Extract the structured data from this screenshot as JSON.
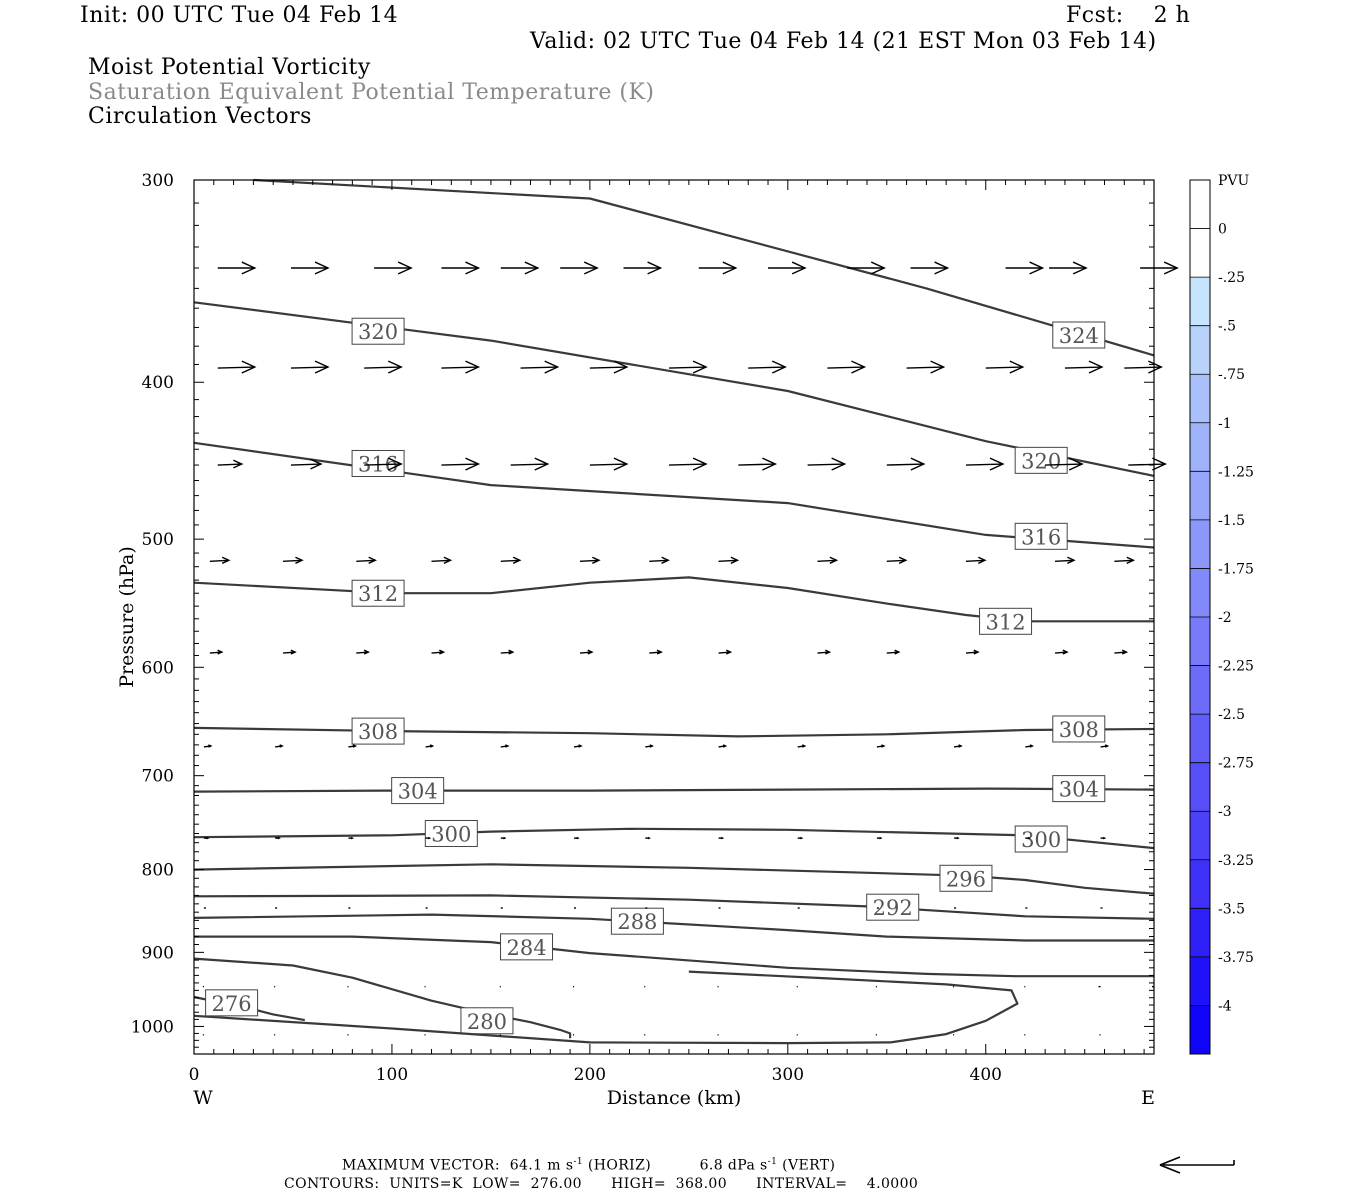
{
  "header": {
    "init": "Init: 00 UTC Tue 04 Feb 14",
    "fcst": "Fcst:    2 h",
    "valid": "Valid: 02 UTC Tue 04 Feb 14 (21 EST Mon 03 Feb 14)",
    "field1": "Moist Potential Vorticity",
    "field2": "Saturation Equivalent Potential Temperature (K)",
    "field3": "Circulation Vectors"
  },
  "footer": {
    "max_vector_label": "MAXIMUM VECTOR:",
    "max_horiz": "64.1 m s",
    "horiz_unit": "(HORIZ)",
    "max_vert": "6.8 dPa s",
    "vert_unit": "(VERT)",
    "exponent": "-1",
    "contours": "CONTOURS:  UNITS=K  LOW=  276.00      HIGH=  368.00      INTERVAL=    4.0000"
  },
  "colors": {
    "contour": "#3a3a3a",
    "vector": "#000000",
    "label_text": "#555555"
  },
  "chart_data": {
    "type": "cross-section",
    "xlabel": "Distance (km)",
    "ylabel": "Pressure (hPa)",
    "xlim": [
      0,
      485
    ],
    "ylim": [
      1040,
      300
    ],
    "y_scale": "log",
    "x_ticks": [
      0,
      100,
      200,
      300,
      400
    ],
    "y_ticks": [
      300,
      400,
      500,
      600,
      700,
      800,
      900,
      1000
    ],
    "west_label": "W",
    "east_label": "E",
    "grid": false,
    "contours": [
      {
        "value": 324,
        "points": [
          [
            30,
            300
          ],
          [
            200,
            308
          ],
          [
            370,
            350
          ],
          [
            485,
            385
          ]
        ],
        "labels": [
          [
            447,
            374
          ]
        ]
      },
      {
        "value": 320,
        "points": [
          [
            0,
            357
          ],
          [
            150,
            377
          ],
          [
            300,
            405
          ],
          [
            400,
            435
          ],
          [
            485,
            457
          ]
        ],
        "labels": [
          [
            93,
            372
          ],
          [
            428,
            447
          ]
        ]
      },
      {
        "value": 316,
        "points": [
          [
            0,
            436
          ],
          [
            150,
            463
          ],
          [
            300,
            475
          ],
          [
            400,
            497
          ],
          [
            485,
            506
          ]
        ],
        "labels": [
          [
            93,
            449
          ],
          [
            428,
            498
          ]
        ]
      },
      {
        "value": 312,
        "points": [
          [
            0,
            532
          ],
          [
            100,
            540
          ],
          [
            150,
            540
          ],
          [
            200,
            532
          ],
          [
            250,
            528
          ],
          [
            300,
            536
          ],
          [
            350,
            548
          ],
          [
            390,
            557
          ],
          [
            420,
            562
          ],
          [
            485,
            562
          ]
        ],
        "labels": [
          [
            93,
            540
          ],
          [
            410,
            562
          ]
        ]
      },
      {
        "value": 308,
        "points": [
          [
            0,
            654
          ],
          [
            100,
            657
          ],
          [
            200,
            659
          ],
          [
            275,
            662
          ],
          [
            350,
            660
          ],
          [
            420,
            656
          ],
          [
            485,
            655
          ]
        ],
        "labels": [
          [
            93,
            657
          ],
          [
            447,
            655
          ]
        ]
      },
      {
        "value": 304,
        "points": [
          [
            0,
            716
          ],
          [
            100,
            715
          ],
          [
            200,
            715
          ],
          [
            300,
            714
          ],
          [
            400,
            713
          ],
          [
            485,
            714
          ]
        ],
        "labels": [
          [
            113,
            715
          ],
          [
            447,
            713
          ]
        ]
      },
      {
        "value": 300,
        "points": [
          [
            0,
            764
          ],
          [
            100,
            762
          ],
          [
            150,
            758
          ],
          [
            220,
            755
          ],
          [
            300,
            756
          ],
          [
            420,
            762
          ],
          [
            485,
            776
          ]
        ],
        "labels": [
          [
            130,
            760
          ],
          [
            428,
            766
          ]
        ]
      },
      {
        "value": 296,
        "points": [
          [
            0,
            800
          ],
          [
            150,
            794
          ],
          [
            250,
            798
          ],
          [
            330,
            803
          ],
          [
            390,
            807
          ],
          [
            420,
            812
          ],
          [
            450,
            821
          ],
          [
            485,
            828
          ]
        ],
        "labels": [
          [
            390,
            810
          ]
        ]
      },
      {
        "value": 292,
        "points": [
          [
            0,
            831
          ],
          [
            150,
            830
          ],
          [
            250,
            835
          ],
          [
            340,
            843
          ],
          [
            380,
            849
          ],
          [
            420,
            855
          ],
          [
            485,
            858
          ]
        ],
        "labels": [
          [
            353,
            844
          ]
        ]
      },
      {
        "value": 288,
        "points": [
          [
            0,
            857
          ],
          [
            120,
            853
          ],
          [
            200,
            858
          ],
          [
            300,
            872
          ],
          [
            350,
            880
          ],
          [
            420,
            885
          ],
          [
            485,
            885
          ]
        ],
        "labels": [
          [
            224,
            861
          ]
        ]
      },
      {
        "value": 284,
        "points": [
          [
            0,
            880
          ],
          [
            80,
            880
          ],
          [
            150,
            887
          ],
          [
            200,
            901
          ],
          [
            300,
            920
          ],
          [
            370,
            928
          ],
          [
            415,
            931
          ],
          [
            485,
            931
          ]
        ],
        "labels": [
          [
            168,
            893
          ]
        ]
      },
      {
        "value": 280,
        "points": [
          [
            0,
            908
          ],
          [
            50,
            917
          ],
          [
            80,
            933
          ],
          [
            120,
            964
          ],
          [
            150,
            983
          ],
          [
            170,
            994
          ],
          [
            185,
            1005
          ],
          [
            190,
            1010
          ],
          [
            190,
            1017
          ]
        ],
        "labels": [
          [
            148,
            992
          ]
        ]
      },
      {
        "value": 280,
        "points": [
          [
            0,
            985
          ],
          [
            100,
            1003
          ],
          [
            200,
            1023
          ],
          [
            300,
            1024
          ],
          [
            352,
            1023
          ],
          [
            380,
            1011
          ],
          [
            400,
            992
          ],
          [
            416,
            968
          ],
          [
            413,
            950
          ],
          [
            380,
            942
          ],
          [
            320,
            934
          ],
          [
            250,
            925
          ]
        ],
        "labels": []
      },
      {
        "value": 276,
        "points": [
          [
            0,
            959
          ],
          [
            30,
            976
          ],
          [
            40,
            983
          ],
          [
            56,
            991
          ]
        ],
        "labels": [
          [
            19,
            967
          ]
        ]
      }
    ],
    "vectors": [
      {
        "p": 340,
        "x": [
          12,
          49,
          91,
          125,
          155,
          185,
          217,
          255,
          290,
          330,
          362,
          410,
          432,
          478
        ],
        "u": [
          37,
          37,
          37,
          37,
          37,
          37,
          37,
          37,
          37,
          37,
          37,
          37,
          37,
          37
        ],
        "w": [
          0,
          0,
          0,
          0,
          0,
          0,
          0,
          0,
          0,
          0,
          0,
          0,
          0,
          0
        ]
      },
      {
        "p": 392,
        "x": [
          12,
          49,
          86,
          125,
          165,
          200,
          240,
          280,
          320,
          360,
          400,
          440,
          470
        ],
        "u": [
          37,
          37,
          37,
          37,
          37,
          37,
          37,
          37,
          37,
          37,
          37,
          37,
          37
        ],
        "w": [
          -1,
          -1,
          -1,
          -1,
          -1,
          -1,
          -1,
          -1,
          -1,
          -1,
          -1,
          -1,
          -1
        ]
      },
      {
        "p": 450,
        "x": [
          12,
          49,
          86,
          125,
          160,
          200,
          240,
          275,
          310,
          350,
          390,
          430,
          472
        ],
        "u": [
          24,
          30,
          37,
          37,
          37,
          37,
          37,
          37,
          37,
          37,
          37,
          37,
          37
        ],
        "w": [
          -1,
          -1,
          -1,
          -1,
          -1,
          -1,
          -1,
          -1,
          -1,
          -1,
          -1,
          -1,
          -1
        ]
      },
      {
        "p": 516,
        "x": [
          8,
          45,
          82,
          120,
          155,
          195,
          230,
          265,
          315,
          350,
          390,
          435,
          465
        ],
        "u": [
          19,
          19,
          19,
          19,
          19,
          19,
          19,
          19,
          19,
          19,
          19,
          19,
          19
        ],
        "w": [
          -1,
          -1,
          -1,
          -1,
          -1,
          -1,
          -1,
          -1,
          -1,
          -1,
          -1,
          -1,
          -1
        ]
      },
      {
        "p": 588,
        "x": [
          8,
          45,
          82,
          120,
          155,
          195,
          230,
          265,
          315,
          350,
          390,
          435,
          465
        ],
        "u": [
          12,
          12,
          12,
          12,
          12,
          12,
          12,
          12,
          12,
          12,
          12,
          12,
          12
        ],
        "w": [
          -1,
          -1,
          -1,
          -1,
          -1,
          -1,
          -1,
          -1,
          -1,
          -1,
          -1,
          -1,
          -1
        ]
      },
      {
        "p": 672,
        "x": [
          5,
          41,
          78,
          117,
          155,
          192,
          228,
          265,
          305,
          345,
          384,
          420,
          458
        ],
        "u": [
          7,
          7,
          7,
          7,
          7,
          7,
          7,
          7,
          7,
          7,
          7,
          7,
          7
        ],
        "w": [
          -1,
          -1,
          -1,
          -1,
          -1,
          -1,
          -1,
          -1,
          -1,
          -1,
          -1,
          -1,
          -1
        ]
      },
      {
        "p": 765,
        "x": [
          5,
          41,
          78,
          117,
          155,
          192,
          228,
          265,
          305,
          345,
          384,
          420,
          458
        ],
        "u": [
          4,
          4,
          4,
          4,
          4,
          4,
          4,
          4,
          4,
          4,
          4,
          4,
          4
        ],
        "w": [
          0,
          0,
          0,
          0,
          0,
          0,
          0,
          0,
          0,
          0,
          0,
          0,
          0
        ]
      },
      {
        "p": 845,
        "x": [
          5,
          41,
          78,
          117,
          155,
          192,
          228,
          265,
          305,
          345,
          384,
          420,
          458
        ],
        "u": [
          2,
          2,
          2,
          2,
          2,
          2,
          2,
          2,
          2,
          2,
          2,
          2,
          2
        ],
        "w": [
          0,
          0,
          0,
          0,
          0,
          0,
          0,
          0,
          0,
          0,
          0,
          0,
          0
        ]
      },
      {
        "p": 945,
        "x": [
          5,
          41,
          78,
          117,
          155,
          192,
          228,
          265,
          305,
          345,
          384,
          420,
          458,
          485
        ],
        "u": [
          -1,
          -1,
          -1,
          -1,
          -1,
          -1,
          -1,
          -1,
          -1,
          -1,
          -1,
          -1,
          -2,
          -2
        ],
        "w": [
          0,
          0,
          0,
          0,
          0,
          0,
          0,
          0,
          0,
          0,
          0,
          0,
          0,
          0
        ]
      },
      {
        "p": 1012,
        "x": [
          5,
          41,
          78,
          117,
          155,
          192,
          228,
          265,
          305,
          345,
          384,
          420,
          458
        ],
        "u": [
          -1,
          -1,
          -1,
          -1,
          -1,
          -1,
          -1,
          -1,
          -1,
          -1,
          -1,
          -1,
          -1
        ],
        "w": [
          0,
          0,
          0,
          0,
          0,
          0,
          0,
          0,
          0,
          0,
          0,
          0,
          0
        ]
      }
    ],
    "colorbar": {
      "unit": "PVU",
      "labels": [
        "0",
        "-.25",
        "-.5",
        "-.75",
        "-1",
        "-1.25",
        "-1.5",
        "-1.75",
        "-2",
        "-2.25",
        "-2.5",
        "-2.75",
        "-3",
        "-3.25",
        "-3.5",
        "-3.75",
        "-4"
      ],
      "values": [
        0,
        -0.25,
        -0.5,
        -0.75,
        -1,
        -1.25,
        -1.5,
        -1.75,
        -2,
        -2.25,
        -2.5,
        -2.75,
        -3,
        -3.25,
        -3.5,
        -3.75,
        -4
      ],
      "colors": [
        "#ffffff",
        "#ffffff",
        "#c6e4fc",
        "#b8d2fc",
        "#a9c0fb",
        "#9fb3fb",
        "#96a6fb",
        "#8b98fa",
        "#8289fa",
        "#777bfa",
        "#6d6cf9",
        "#625df9",
        "#574ef9",
        "#4c40f9",
        "#3f30f8",
        "#2f20f8",
        "#1f11f8",
        "#0f03f8"
      ]
    }
  }
}
